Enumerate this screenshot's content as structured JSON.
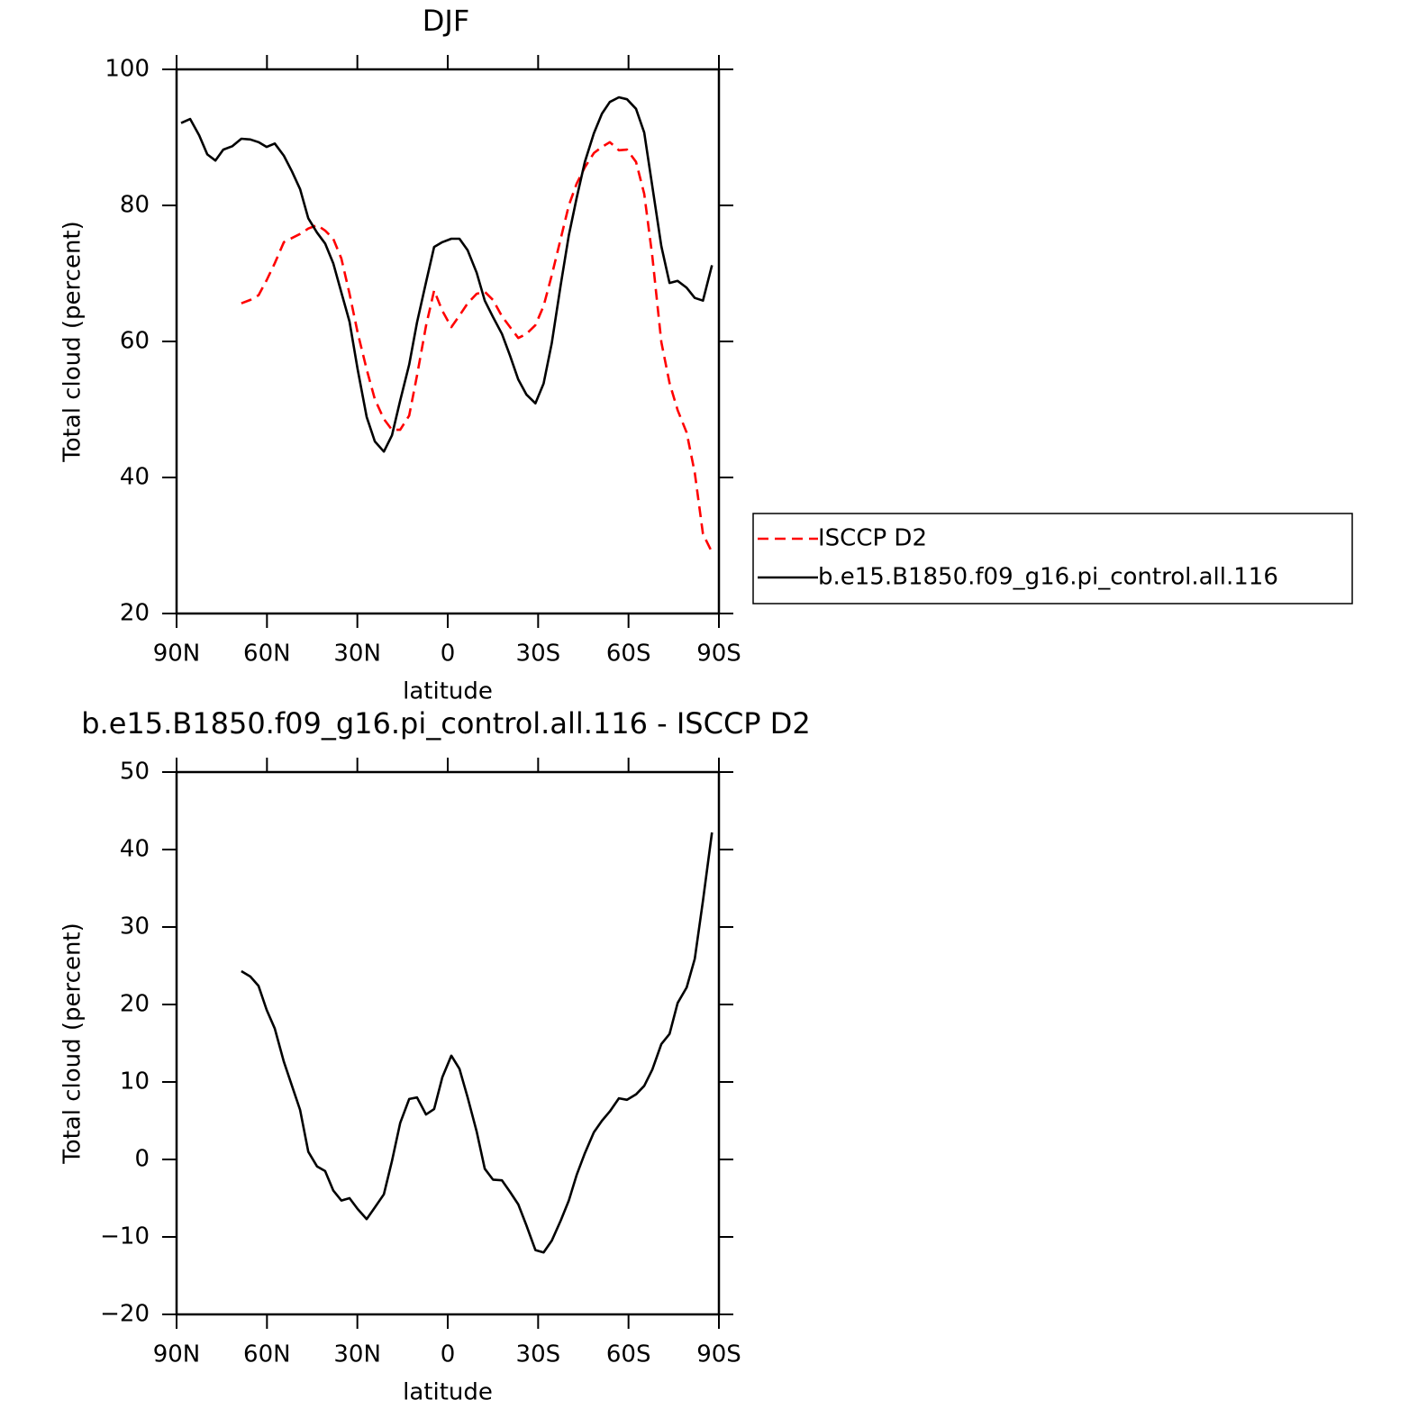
{
  "chart_data": [
    {
      "type": "line",
      "title": "DJF",
      "xlabel": "latitude",
      "ylabel": "Total cloud (percent)",
      "x": [
        88.5,
        85.5,
        82.5,
        79.8,
        77.1,
        74.5,
        71.5,
        68.5,
        65.5,
        62.8,
        60.1,
        57.4,
        54.4,
        51.7,
        49.0,
        46.3,
        43.4,
        40.7,
        38.0,
        35.3,
        32.6,
        29.9,
        26.9,
        24.2,
        21.2,
        18.5,
        15.8,
        12.8,
        10.2,
        7.2,
        4.5,
        1.8,
        -1.2,
        -3.9,
        -6.6,
        -9.6,
        -12.3,
        -15.0,
        -18.0,
        -20.7,
        -23.4,
        -26.1,
        -29.1,
        -31.8,
        -34.5,
        -37.5,
        -40.2,
        -42.8,
        -45.5,
        -48.5,
        -51.2,
        -53.8,
        -56.8,
        -59.5,
        -62.5,
        -65.2,
        -67.9,
        -70.9,
        -73.6,
        -76.3,
        -79.3,
        -82.0,
        -84.7,
        -87.7
      ],
      "series": [
        {
          "name": "ISCCP D2",
          "color": "#ff0000",
          "dash": true,
          "values": [
            null,
            null,
            null,
            null,
            null,
            null,
            null,
            65.6,
            66.1,
            66.8,
            69.0,
            71.5,
            74.6,
            75.2,
            75.8,
            76.6,
            77.1,
            76.3,
            75.1,
            72.2,
            67.0,
            61.3,
            55.9,
            51.5,
            48.6,
            47.0,
            47.0,
            49.1,
            55.0,
            62.3,
            67.5,
            64.5,
            62.1,
            63.8,
            65.6,
            67.0,
            67.3,
            66.1,
            63.7,
            62.1,
            60.5,
            61.1,
            62.4,
            65.2,
            69.7,
            75.1,
            80.0,
            83.2,
            85.6,
            87.7,
            88.6,
            89.3,
            88.1,
            88.2,
            86.4,
            81.7,
            72.5,
            59.9,
            53.9,
            49.9,
            46.6,
            40.7,
            31.7,
            29.0
          ]
        },
        {
          "name": "b.e15.B1850.f09_g16.pi_control.all.116",
          "color": "#000000",
          "dash": false,
          "values": [
            92.1,
            92.7,
            90.3,
            87.5,
            86.6,
            88.2,
            88.7,
            89.8,
            89.7,
            89.3,
            88.6,
            89.1,
            87.3,
            85.0,
            82.4,
            78.1,
            76.0,
            74.4,
            71.5,
            67.2,
            62.9,
            55.9,
            48.9,
            45.3,
            43.8,
            46.2,
            51.3,
            56.6,
            62.8,
            68.7,
            73.9,
            74.6,
            75.1,
            75.1,
            73.4,
            70.1,
            66.0,
            63.6,
            61.1,
            57.9,
            54.4,
            52.2,
            50.9,
            53.8,
            59.7,
            68.3,
            75.6,
            81.1,
            86.4,
            90.6,
            93.5,
            95.2,
            95.9,
            95.6,
            94.2,
            90.7,
            82.8,
            74.0,
            68.6,
            68.9,
            67.9,
            66.4,
            66.0,
            71.2
          ]
        }
      ],
      "xlim": [
        90,
        -90
      ],
      "xticks": [
        {
          "value": 90,
          "label": "90N"
        },
        {
          "value": 60,
          "label": "60N"
        },
        {
          "value": 30,
          "label": "30N"
        },
        0,
        {
          "value": -30,
          "label": "30S"
        },
        {
          "value": -60,
          "label": "60S"
        },
        {
          "value": -90,
          "label": "90S"
        }
      ],
      "ylim": [
        20,
        100
      ],
      "yticks": [
        20,
        40,
        60,
        80,
        100
      ],
      "legend": "right"
    },
    {
      "type": "line",
      "title": "b.e15.B1850.f09_g16.pi_control.all.116 - ISCCP D2",
      "xlabel": "latitude",
      "ylabel": "Total cloud (percent)",
      "x": [
        68.5,
        65.5,
        62.8,
        60.1,
        57.4,
        54.4,
        51.7,
        49.0,
        46.3,
        43.4,
        40.7,
        38.0,
        35.3,
        32.6,
        29.9,
        26.9,
        24.2,
        21.2,
        18.5,
        15.8,
        12.8,
        10.2,
        7.2,
        4.5,
        1.8,
        -1.2,
        -3.9,
        -6.6,
        -9.6,
        -12.3,
        -15.0,
        -18.0,
        -20.7,
        -23.4,
        -26.1,
        -29.1,
        -31.8,
        -34.5,
        -37.5,
        -40.2,
        -42.8,
        -45.5,
        -48.5,
        -51.2,
        -53.8,
        -56.8,
        -59.5,
        -62.5,
        -65.2,
        -67.9,
        -70.9,
        -73.6,
        -76.3,
        -79.3,
        -82.0,
        -84.7,
        -87.7
      ],
      "values": [
        24.3,
        23.6,
        22.4,
        19.3,
        16.9,
        12.6,
        9.5,
        6.4,
        1.0,
        -0.9,
        -1.5,
        -4.0,
        -5.3,
        -5.0,
        -6.4,
        -7.7,
        -6.2,
        -4.5,
        -0.2,
        4.7,
        7.8,
        8.0,
        5.8,
        6.5,
        10.6,
        13.4,
        11.7,
        8.0,
        3.6,
        -1.2,
        -2.6,
        -2.7,
        -4.2,
        -5.8,
        -8.5,
        -11.7,
        -12.0,
        -10.5,
        -7.9,
        -5.3,
        -2.0,
        0.8,
        3.5,
        5.0,
        6.2,
        7.9,
        7.7,
        8.4,
        9.5,
        11.6,
        14.9,
        16.2,
        20.2,
        22.2,
        25.9,
        33.4,
        42.2
      ],
      "color": "#000000",
      "xlim": [
        90,
        -90
      ],
      "xticks": [
        {
          "value": 90,
          "label": "90N"
        },
        {
          "value": 60,
          "label": "60N"
        },
        {
          "value": 30,
          "label": "30N"
        },
        0,
        {
          "value": -30,
          "label": "30S"
        },
        {
          "value": -60,
          "label": "60S"
        },
        {
          "value": -90,
          "label": "90S"
        }
      ],
      "ylim": [
        -20,
        50
      ],
      "yticks": [
        {
          "value": -20,
          "label": "−20"
        },
        {
          "value": -10,
          "label": "−10"
        },
        0,
        10,
        20,
        30,
        40,
        50
      ]
    }
  ]
}
